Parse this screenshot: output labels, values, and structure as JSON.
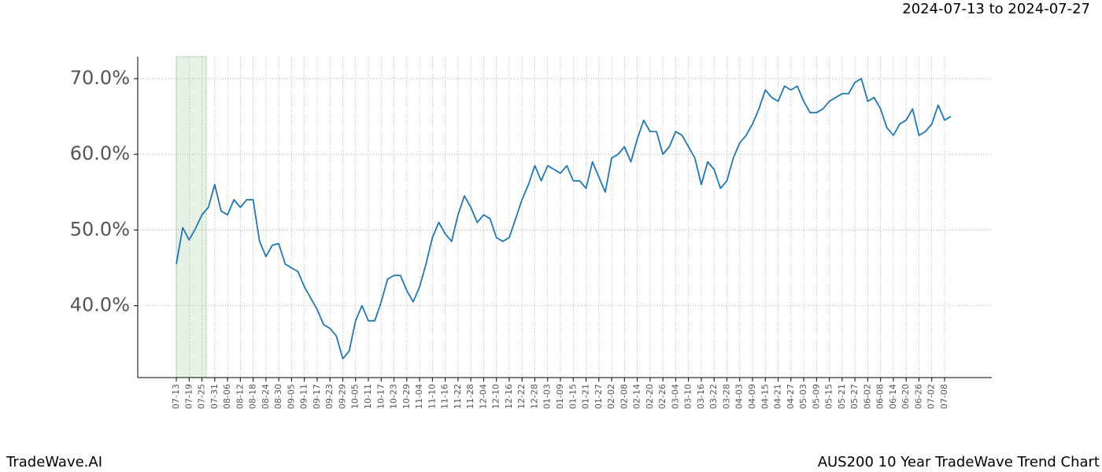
{
  "chart_data": {
    "type": "line",
    "title": "AUS200 10 Year TradeWave Trend Chart",
    "date_range": "2024-07-13 to 2024-07-27",
    "brand": "TradeWave.AI",
    "categories": [
      "07-13",
      null,
      "07-19",
      null,
      "07-25",
      null,
      "07-31",
      null,
      "08-06",
      null,
      "08-12",
      null,
      "08-18",
      null,
      "08-24",
      null,
      "08-30",
      null,
      "09-05",
      null,
      "09-11",
      null,
      "09-17",
      null,
      "09-23",
      null,
      "09-29",
      null,
      "10-05",
      null,
      "10-11",
      null,
      "10-17",
      null,
      "10-23",
      null,
      "10-29",
      null,
      "11-04",
      null,
      "11-10",
      null,
      "11-16",
      null,
      "11-22",
      null,
      "11-28",
      null,
      "12-04",
      null,
      "12-10",
      null,
      "12-16",
      null,
      "12-22",
      null,
      "12-28",
      null,
      "01-03",
      null,
      "01-09",
      null,
      "01-15",
      null,
      "01-21",
      null,
      "01-27",
      null,
      "02-02",
      null,
      "02-08",
      null,
      "02-14",
      null,
      "02-20",
      null,
      "02-26",
      null,
      "03-04",
      null,
      "03-10",
      null,
      "03-16",
      null,
      "03-22",
      null,
      "03-28",
      null,
      "04-03",
      null,
      "04-09",
      null,
      "04-15",
      null,
      "04-21",
      null,
      "04-27",
      null,
      "05-03",
      null,
      "05-09",
      null,
      "05-15",
      null,
      "05-21",
      null,
      "05-27",
      null,
      "06-02",
      null,
      "06-08",
      null,
      "06-14",
      null,
      "06-20",
      null,
      "06-26",
      null,
      "07-02",
      null,
      "07-08",
      null
    ],
    "series": [
      {
        "color": "#1f77b4",
        "values": [
          45.5,
          50.3,
          48.7,
          50.2,
          52.0,
          53.0,
          56.0,
          52.5,
          52.0,
          54.0,
          53.0,
          54.0,
          54.0,
          48.5,
          46.5,
          48.0,
          48.2,
          45.5,
          45.0,
          44.5,
          42.5,
          41.0,
          39.5,
          37.5,
          37.0,
          36.0,
          33.0,
          34.0,
          38.0,
          40.0,
          38.0,
          38.0,
          40.5,
          43.5,
          44.0,
          44.0,
          42.0,
          40.5,
          42.5,
          45.5,
          49.0,
          51.0,
          49.5,
          48.5,
          52.0,
          54.5,
          53.0,
          51.0,
          52.0,
          51.5,
          49.0,
          48.5,
          49.0,
          51.5,
          54.0,
          56.0,
          58.5,
          56.5,
          58.5,
          58.0,
          57.5,
          58.5,
          56.5,
          56.5,
          55.5,
          59.0,
          57.0,
          55.0,
          59.5,
          60.0,
          61.0,
          59.0,
          62.0,
          64.5,
          63.0,
          63.0,
          60.0,
          61.0,
          63.0,
          62.5,
          61.0,
          59.5,
          56.0,
          59.0,
          58.0,
          55.5,
          56.5,
          59.5,
          61.5,
          62.5,
          64.0,
          66.0,
          68.5,
          67.5,
          67.0,
          69.0,
          68.5,
          69.0,
          67.0,
          65.5,
          65.5,
          66.0,
          67.0,
          67.5,
          68.0,
          68.0,
          69.5,
          70.0,
          67.0,
          67.5,
          66.0,
          63.5,
          62.5,
          64.0,
          64.5,
          66.0,
          62.5,
          63.0,
          64.0,
          66.5,
          64.5,
          65.0
        ]
      }
    ],
    "ylim": [
      30.5,
      72.9
    ],
    "yticks": [
      {
        "value": 40,
        "label": "40.0%"
      },
      {
        "value": 50,
        "label": "50.0%"
      },
      {
        "value": 60,
        "label": "60.0%"
      },
      {
        "value": 70,
        "label": "70.0%"
      }
    ],
    "grid": true
  }
}
